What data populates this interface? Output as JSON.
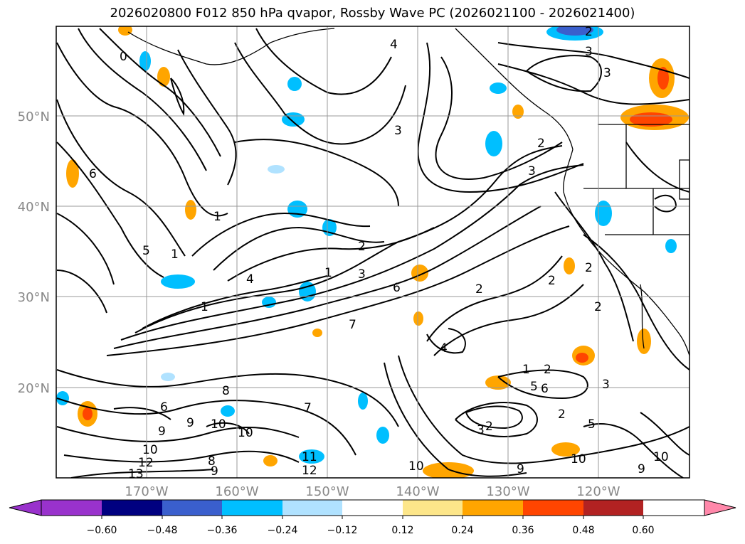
{
  "title": "2026020800 F012 850 hPa qvapor, Rossby Wave PC (2026021100 - 2026021400)",
  "lat_labels": [
    "50°N",
    "40°N",
    "30°N",
    "20°N"
  ],
  "lon_labels": [
    "170°W",
    "160°W",
    "150°W",
    "140°W",
    "130°W",
    "120°W"
  ],
  "colorbar": {
    "colors": [
      "#9932cc",
      "#000080",
      "#3a5fcd",
      "#00bfff",
      "#b0e2ff",
      "#ffffff",
      "#fde68a",
      "#ffa500",
      "#ff4500",
      "#b22222",
      "#ff88aa"
    ],
    "ticks": [
      "−0.60",
      "−0.48",
      "−0.36",
      "−0.24",
      "−0.12",
      "0.12",
      "0.24",
      "0.36",
      "0.48",
      "0.60"
    ]
  },
  "contour_labels": [
    "0",
    "1",
    "2",
    "3",
    "4",
    "5",
    "6",
    "7",
    "8",
    "9",
    "10",
    "11",
    "12",
    "13"
  ],
  "colors": {
    "grid": "#999999",
    "contour": "#000000",
    "coast": "#000000"
  }
}
